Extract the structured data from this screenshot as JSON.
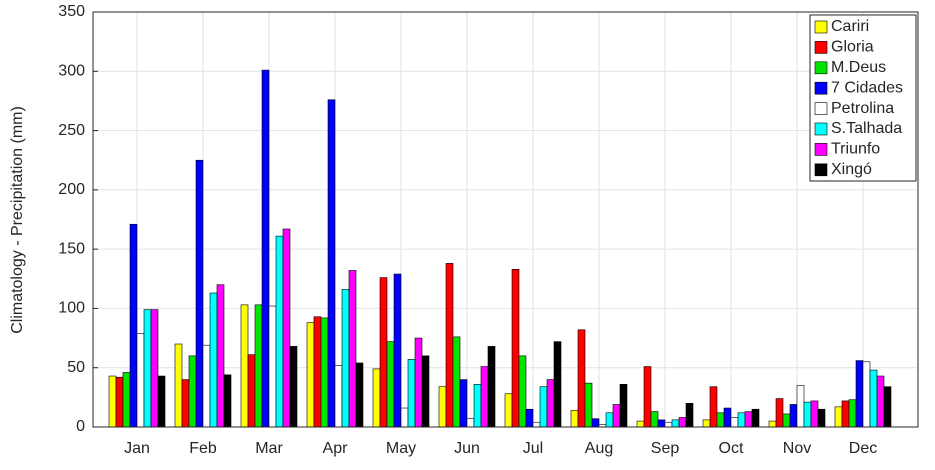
{
  "chart_data": {
    "type": "bar",
    "y_label": "Climatology - Precipitation (mm)",
    "categories": [
      "Jan",
      "Feb",
      "Mar",
      "Apr",
      "May",
      "Jun",
      "Jul",
      "Aug",
      "Sep",
      "Oct",
      "Nov",
      "Dec"
    ],
    "series": [
      {
        "name": "Cariri",
        "color": "#ffff00",
        "values": [
          43,
          70,
          103,
          88,
          49,
          34,
          28,
          14,
          5,
          6,
          5,
          17
        ]
      },
      {
        "name": "Gloria",
        "color": "#ff0000",
        "values": [
          42,
          40,
          61,
          93,
          126,
          138,
          133,
          82,
          51,
          34,
          24,
          22
        ]
      },
      {
        "name": "M.Deus",
        "color": "#00e600",
        "values": [
          46,
          60,
          103,
          92,
          72,
          76,
          60,
          37,
          13,
          12,
          11,
          23
        ]
      },
      {
        "name": "7 Cidades",
        "color": "#0000ff",
        "values": [
          171,
          225,
          301,
          276,
          129,
          40,
          15,
          7,
          6,
          16,
          19,
          56
        ]
      },
      {
        "name": "Petrolina",
        "color": "#ffffff",
        "values": [
          79,
          69,
          102,
          52,
          16,
          7,
          4,
          2,
          4,
          8,
          35,
          55
        ]
      },
      {
        "name": "S.Talhada",
        "color": "#00ffff",
        "values": [
          99,
          113,
          161,
          116,
          57,
          36,
          34,
          12,
          6,
          12,
          21,
          48
        ]
      },
      {
        "name": "Triunfo",
        "color": "#ff00ff",
        "values": [
          99,
          120,
          167,
          132,
          75,
          51,
          40,
          19,
          8,
          13,
          22,
          43
        ]
      },
      {
        "name": "Xingó",
        "color": "#000000",
        "values": [
          43,
          44,
          68,
          54,
          60,
          68,
          72,
          36,
          20,
          15,
          15,
          34
        ]
      }
    ],
    "ylim": [
      0,
      350
    ],
    "yticks": [
      0,
      50,
      100,
      150,
      200,
      250,
      300,
      350
    ],
    "grid": true,
    "legend": "top-right"
  }
}
